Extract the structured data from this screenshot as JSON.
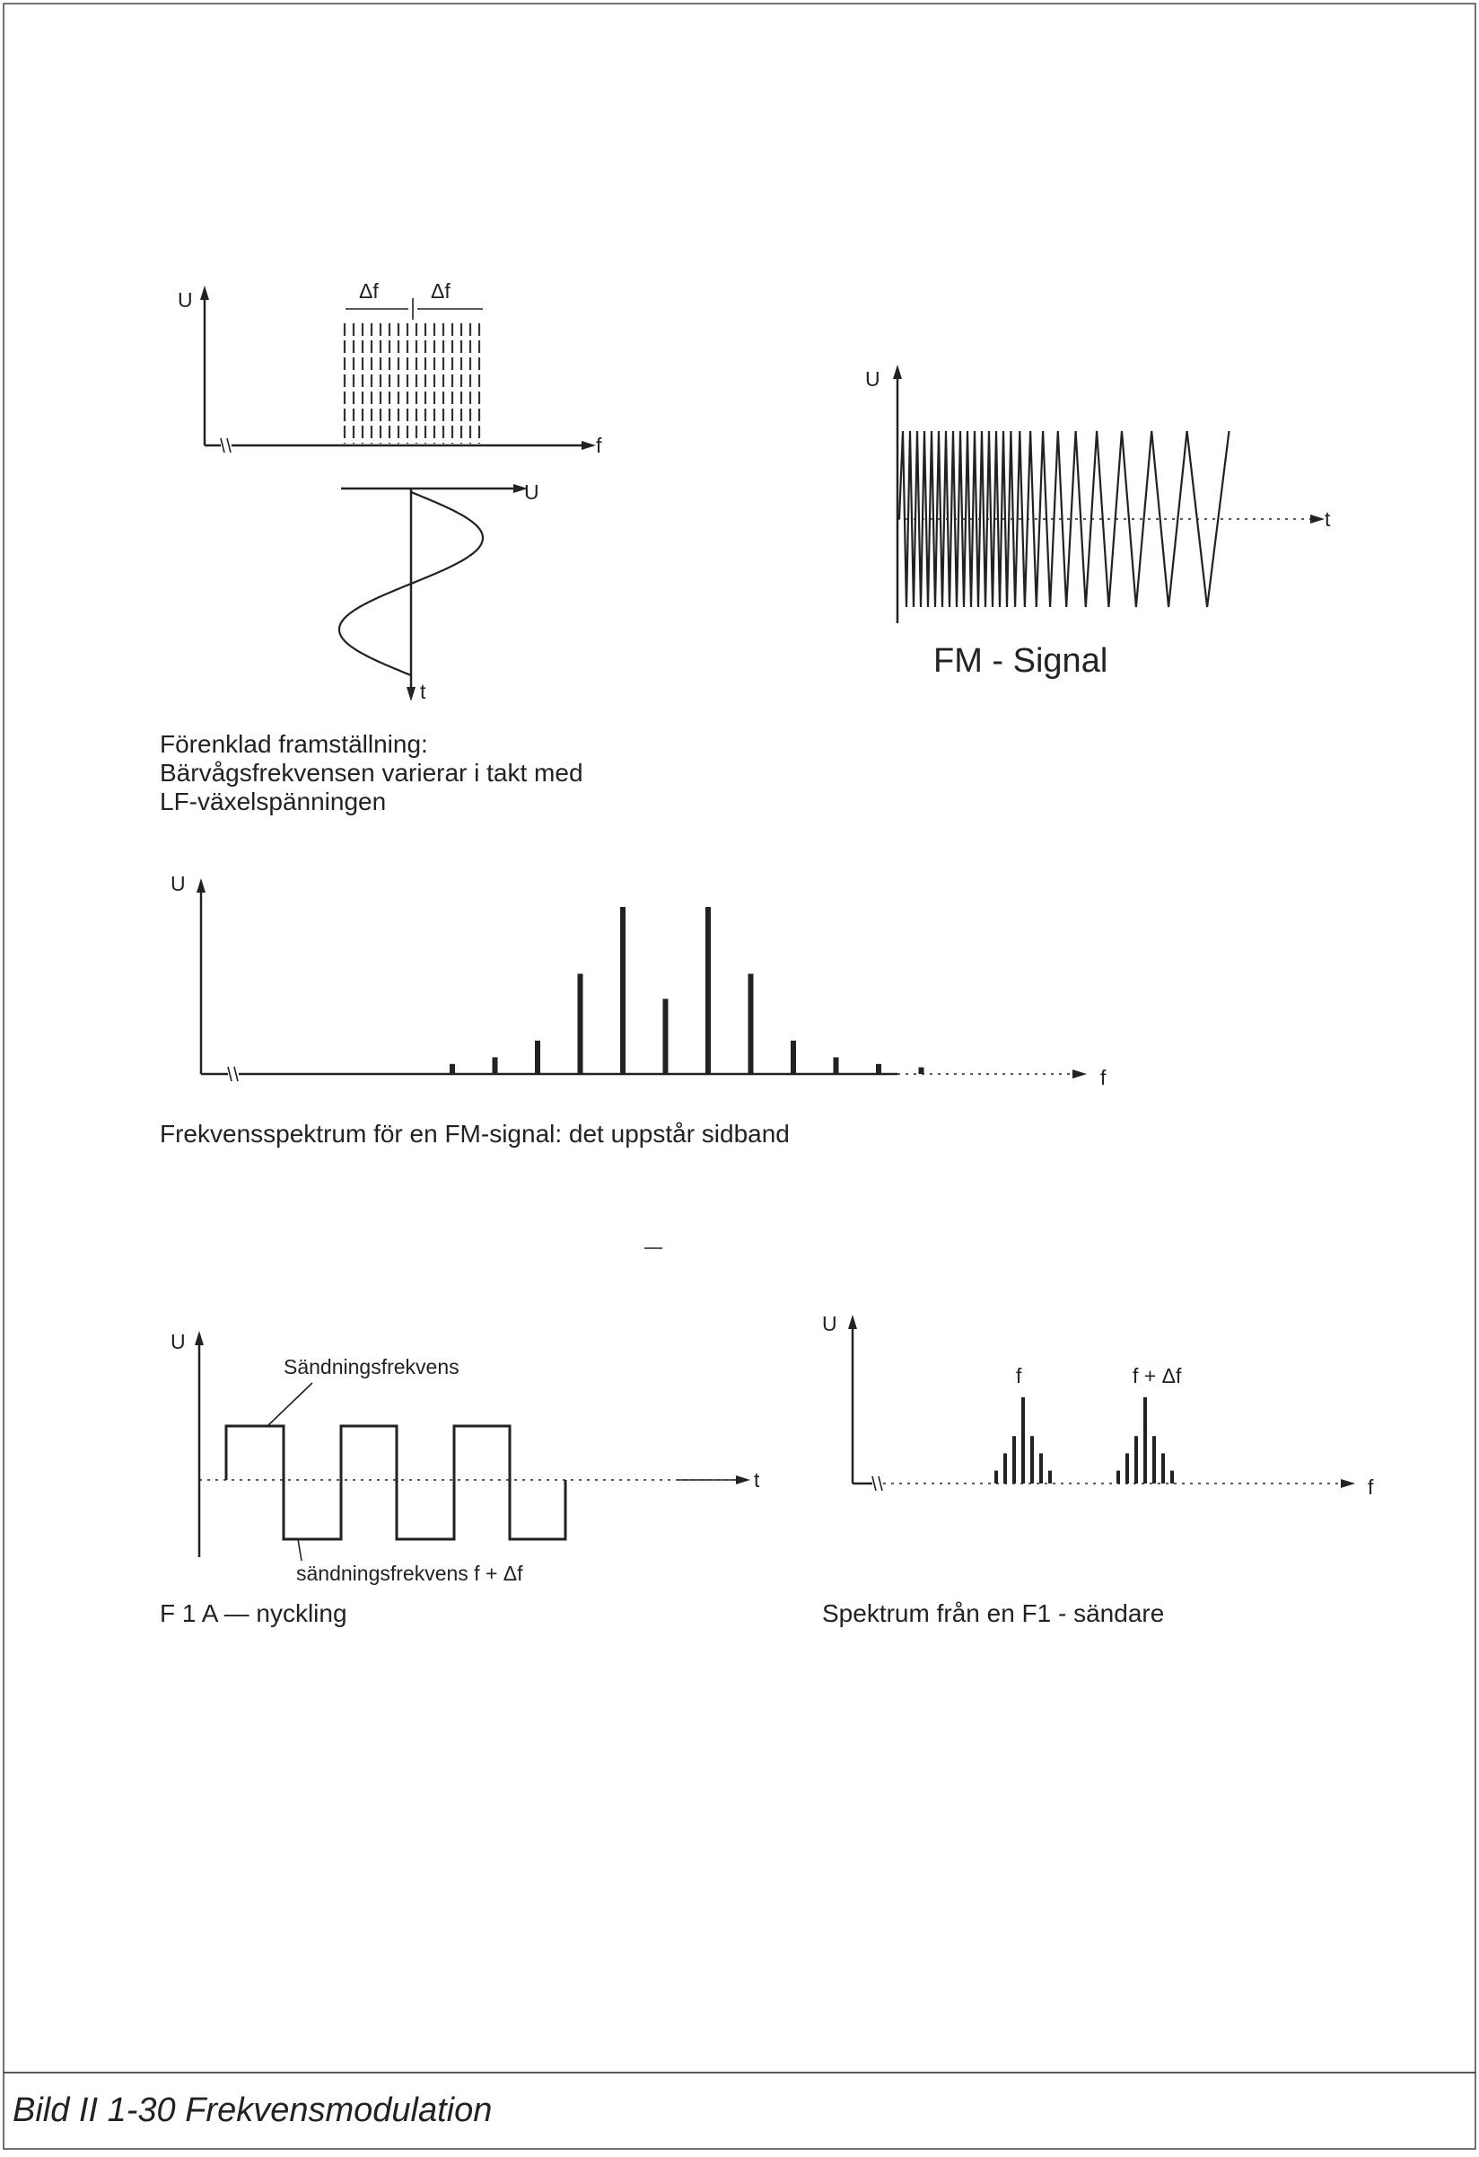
{
  "figure_caption": "Bild II 1-30  Frekvensmodulation",
  "panel_a": {
    "y_axis": "U",
    "x_axis": "f",
    "delta_left": "Δf",
    "delta_right": "Δf",
    "sub_x_axis": "U",
    "sub_y_axis": "t",
    "caption_lines": [
      "Förenklad framställning:",
      "Bärvågsfrekvensen varierar i takt med",
      "LF-växelspänningen"
    ]
  },
  "panel_b": {
    "y_axis": "U",
    "x_axis": "t",
    "caption": "FM - Signal"
  },
  "panel_c": {
    "y_axis": "U",
    "x_axis": "f",
    "caption": "Frekvensspektrum för en FM-signal: det uppstår sidband",
    "bar_heights": [
      0.06,
      0.1,
      0.2,
      0.6,
      1.0,
      0.45,
      1.0,
      0.6,
      0.2,
      0.1,
      0.06,
      0.04
    ]
  },
  "panel_d": {
    "y_axis": "U",
    "x_axis": "t",
    "label_top": "Sändningsfrekvens",
    "label_bottom": "sändningsfrekvens f + Δf",
    "caption": "F 1 A — nyckling"
  },
  "panel_e": {
    "y_axis": "U",
    "x_axis": "f",
    "label_f": "f",
    "label_f_delta": "f + Δf",
    "caption": "Spektrum från en F1 - sändare",
    "group1_heights": [
      0.15,
      0.35,
      0.55,
      1.0,
      0.55,
      0.35,
      0.15
    ],
    "group2_heights": [
      0.15,
      0.35,
      0.55,
      1.0,
      0.55,
      0.35,
      0.15
    ]
  },
  "colors": {
    "ink": "#222222",
    "paper": "#ffffff"
  }
}
